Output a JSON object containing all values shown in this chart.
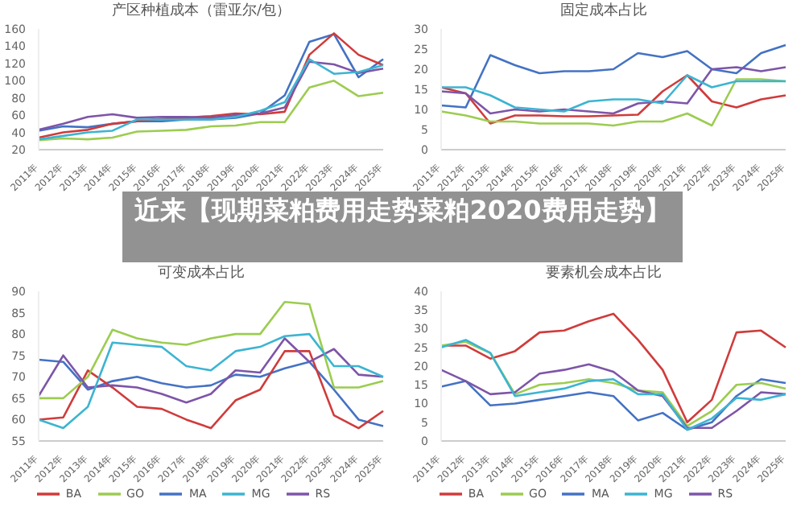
{
  "chart_data": [
    {
      "type": "line",
      "title": "产区种植成本（雷亚尔/包）",
      "categories": [
        "2011年",
        "2012年",
        "2013年",
        "2014年",
        "2015年",
        "2016年",
        "2017年",
        "2018年",
        "2019年",
        "2020年",
        "2021年",
        "2022年",
        "2023年",
        "2024年",
        "2025年"
      ],
      "ylim": [
        20,
        160
      ],
      "yticks": [
        20,
        40,
        60,
        80,
        100,
        120,
        140,
        160
      ],
      "grid": false,
      "legend": false,
      "marker": "none",
      "series": [
        {
          "color": "#4472c4",
          "values": [
            42,
            47,
            46,
            50,
            53,
            53,
            55,
            55,
            57,
            62,
            83,
            145,
            154,
            104,
            125
          ]
        },
        {
          "color": "#d03b3b",
          "values": [
            34,
            40,
            43,
            50,
            53,
            56,
            57,
            59,
            62,
            61,
            64,
            130,
            155,
            130,
            118
          ]
        },
        {
          "color": "#9ccc50",
          "values": [
            31,
            33,
            32,
            34,
            41,
            42,
            43,
            47,
            48,
            52,
            52,
            92,
            100,
            82,
            86
          ]
        },
        {
          "color": "#7d55a8",
          "values": [
            43,
            50,
            58,
            61,
            57,
            58,
            58,
            57,
            60,
            62,
            69,
            122,
            119,
            109,
            114
          ]
        },
        {
          "color": "#3cb4d2",
          "values": [
            32,
            36,
            40,
            42,
            55,
            55,
            55,
            55,
            58,
            65,
            75,
            125,
            108,
            110,
            118
          ]
        }
      ]
    },
    {
      "type": "line",
      "title": "固定成本占比",
      "categories": [
        "2011年",
        "2012年",
        "2013年",
        "2014年",
        "2015年",
        "2016年",
        "2017年",
        "2018年",
        "2019年",
        "2020年",
        "2021年",
        "2022年",
        "2023年",
        "2024年",
        "2025年"
      ],
      "ylim": [
        0,
        30
      ],
      "yticks": [
        0,
        5,
        10,
        15,
        20,
        25,
        30
      ],
      "grid": false,
      "legend": false,
      "marker": "none",
      "series": [
        {
          "color": "#4472c4",
          "values": [
            11,
            10.5,
            23.5,
            21,
            19,
            19.5,
            19.5,
            20,
            24,
            23,
            24.5,
            20,
            19,
            24,
            26
          ]
        },
        {
          "color": "#d03b3b",
          "values": [
            15.5,
            14,
            6.5,
            8.5,
            8.5,
            8.3,
            8.3,
            8.5,
            8.7,
            14.5,
            18.5,
            12,
            10.5,
            12.5,
            13.5
          ]
        },
        {
          "color": "#9ccc50",
          "values": [
            9.5,
            8.5,
            7,
            7,
            6.5,
            6.5,
            6.5,
            6,
            7,
            7,
            9,
            6,
            17.5,
            17.5,
            17
          ]
        },
        {
          "color": "#7d55a8",
          "values": [
            14.5,
            14,
            9,
            10,
            9.5,
            10,
            9.5,
            9,
            11.5,
            12,
            11.5,
            20,
            20.5,
            19.5,
            20.5
          ]
        },
        {
          "color": "#3cb4d2",
          "values": [
            15.5,
            15.5,
            13.5,
            10.5,
            10,
            9.5,
            12,
            12.5,
            12.5,
            11.5,
            18.5,
            15.5,
            17,
            17,
            17
          ]
        }
      ]
    },
    {
      "type": "other",
      "title": "近来【现期菜粕费用走势菜粕2020费用走势】"
    },
    {
      "type": "line",
      "title": "可变成本占比",
      "categories": [
        "2011年",
        "2012年",
        "2013年",
        "2014年",
        "2015年",
        "2016年",
        "2017年",
        "2018年",
        "2019年",
        "2020年",
        "2021年",
        "2022年",
        "2023年",
        "2024年",
        "2025年"
      ],
      "ylim": [
        55,
        90
      ],
      "yticks": [
        55,
        60,
        65,
        70,
        75,
        80,
        85,
        90
      ],
      "grid": false,
      "legend": "bottom",
      "marker": "none",
      "series": [
        {
          "name": "MA",
          "color": "#4472c4",
          "values": [
            74,
            73.5,
            67,
            69,
            70,
            68.5,
            67.5,
            68,
            70.5,
            70,
            72,
            73.5,
            67,
            60,
            58.5
          ]
        },
        {
          "name": "BA",
          "color": "#d03b3b",
          "values": [
            60,
            60.5,
            71.5,
            67.5,
            63,
            62.5,
            60,
            58,
            64.5,
            67,
            76,
            76,
            61,
            58,
            62
          ]
        },
        {
          "name": "GO",
          "color": "#9ccc50",
          "values": [
            65,
            65,
            70,
            81,
            79,
            78,
            77.5,
            79,
            80,
            80,
            87.5,
            87,
            67.5,
            67.5,
            69
          ]
        },
        {
          "name": "RS",
          "color": "#7d55a8",
          "values": [
            65.5,
            75,
            67.5,
            68,
            67.5,
            66,
            64,
            66,
            71.5,
            71,
            79,
            73.5,
            76.5,
            70.5,
            70
          ]
        },
        {
          "name": "MG",
          "color": "#3cb4d2",
          "values": [
            60,
            58,
            63,
            78,
            77.5,
            77,
            72.5,
            71.5,
            76,
            77,
            79.5,
            80,
            72.5,
            72.5,
            70
          ]
        }
      ]
    },
    {
      "type": "line",
      "title": "要素机会成本占比",
      "categories": [
        "2011年",
        "2012年",
        "2013年",
        "2014年",
        "2015年",
        "2016年",
        "2017年",
        "2018年",
        "2019年",
        "2020年",
        "2021年",
        "2022年",
        "2023年",
        "2024年",
        "2025年"
      ],
      "ylim": [
        0,
        40
      ],
      "yticks": [
        0,
        5,
        10,
        15,
        20,
        25,
        30,
        35,
        40
      ],
      "grid": false,
      "legend": "bottom",
      "marker": "none",
      "series": [
        {
          "name": "MA",
          "color": "#4472c4",
          "values": [
            14.5,
            16,
            9.5,
            10,
            11,
            12,
            13,
            12,
            5.5,
            7.5,
            3,
            5,
            12,
            16.5,
            15.5
          ]
        },
        {
          "name": "BA",
          "color": "#d03b3b",
          "values": [
            25.5,
            25.5,
            22,
            24,
            29,
            29.5,
            32,
            34,
            27,
            19,
            5,
            11,
            29,
            29.5,
            25
          ]
        },
        {
          "name": "GO",
          "color": "#9ccc50",
          "values": [
            25.5,
            26.5,
            23.5,
            12.5,
            15,
            15.5,
            16.5,
            15.5,
            13.5,
            13,
            4,
            8,
            15,
            15.5,
            14
          ]
        },
        {
          "name": "RS",
          "color": "#7d55a8",
          "values": [
            19,
            16,
            12.5,
            13,
            18,
            19,
            20.5,
            18.5,
            13.5,
            12,
            3.5,
            3.5,
            8,
            13,
            12.5
          ]
        },
        {
          "name": "MG",
          "color": "#3cb4d2",
          "values": [
            25,
            27,
            23.5,
            12,
            13,
            14,
            16,
            16.5,
            12.5,
            12.5,
            3,
            6,
            11.5,
            11,
            12.5
          ]
        }
      ]
    }
  ]
}
